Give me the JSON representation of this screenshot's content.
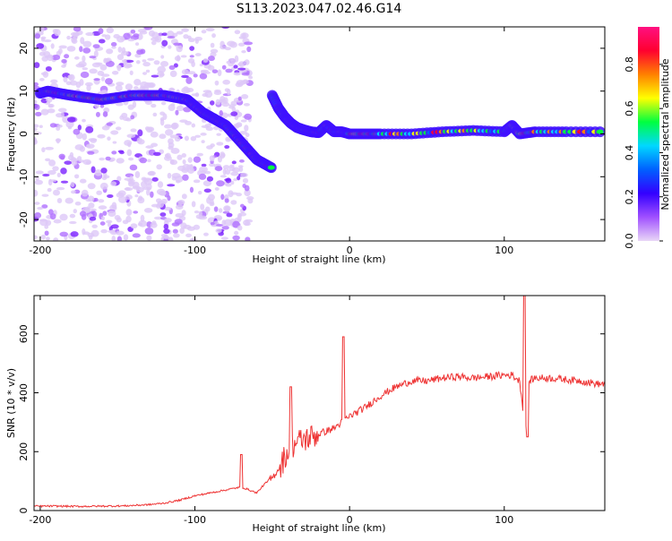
{
  "title": "S113.2023.047.02.46.G14",
  "colorbar": {
    "label": "Normalized spectral amplitude",
    "ticks": [
      {
        "value": 0.0,
        "label": "0.0"
      },
      {
        "value": 0.2,
        "label": "0.2"
      },
      {
        "value": 0.4,
        "label": "0.4"
      },
      {
        "value": 0.6,
        "label": "0.6"
      },
      {
        "value": 0.8,
        "label": "0.8"
      }
    ],
    "colors": [
      "#e9d6f7",
      "#a050ff",
      "#3300ff",
      "#0060ff",
      "#00d8ff",
      "#00ff40",
      "#ffff00",
      "#ff8000",
      "#ff0030",
      "#ff1080"
    ]
  },
  "chart_data": [
    {
      "type": "heatmap",
      "xlabel": "Height of straight line (km)",
      "ylabel": "Frequency (Hz)",
      "xlim": [
        -204,
        165
      ],
      "ylim": [
        -25,
        25
      ],
      "xticks": [
        {
          "value": -200,
          "label": "-200"
        },
        {
          "value": -100,
          "label": "-100"
        },
        {
          "value": 0,
          "label": "0"
        },
        {
          "value": 100,
          "label": "100"
        }
      ],
      "yticks": [
        {
          "value": -20,
          "label": "-20"
        },
        {
          "value": -10,
          "label": "-10"
        },
        {
          "value": 0,
          "label": "0"
        },
        {
          "value": 10,
          "label": "10"
        },
        {
          "value": 20,
          "label": "20"
        }
      ],
      "ridge": {
        "x": [
          -200,
          -195,
          -188,
          -180,
          -170,
          -160,
          -150,
          -140,
          -130,
          -120,
          -112,
          -105,
          -100,
          -95,
          -90,
          -85,
          -80,
          -75,
          -70,
          -65,
          -60,
          -55,
          -50
        ],
        "y": [
          9.5,
          10,
          9.5,
          9,
          8.5,
          8,
          8.5,
          9,
          9,
          9,
          8.5,
          8,
          6.5,
          5,
          4,
          3,
          2,
          0,
          -2,
          -4,
          -6,
          -7,
          -8
        ]
      },
      "ridge2": {
        "x": [
          -50,
          -46,
          -42,
          -38,
          -34,
          -30,
          -25,
          -20,
          -15,
          -10,
          -5,
          0,
          10,
          20,
          40,
          60,
          80,
          100,
          105,
          110,
          120,
          140,
          165
        ],
        "y": [
          9,
          6,
          4,
          2.5,
          1.5,
          1,
          0.5,
          0.3,
          2,
          0.5,
          0.5,
          0,
          0,
          0,
          0,
          0.5,
          0.8,
          0.5,
          2,
          0,
          0.5,
          0.5,
          0.5
        ]
      }
    },
    {
      "type": "line",
      "xlabel": "Height of straight line (km)",
      "ylabel": "SNR (10 * v/v)",
      "xlim": [
        -204,
        165
      ],
      "ylim": [
        0,
        730
      ],
      "xticks": [
        {
          "value": -200,
          "label": "-200"
        },
        {
          "value": -100,
          "label": "-100"
        },
        {
          "value": 0,
          "label": "0"
        },
        {
          "value": 100,
          "label": "100"
        }
      ],
      "yticks": [
        {
          "value": 0,
          "label": "0"
        },
        {
          "value": 200,
          "label": "200"
        },
        {
          "value": 400,
          "label": "400"
        },
        {
          "value": 600,
          "label": "600"
        }
      ],
      "color": "#ee3333",
      "series": [
        {
          "x": [
            -204,
            -190,
            -175,
            -160,
            -145,
            -130,
            -120,
            -110,
            -100,
            -90,
            -80,
            -70,
            -65,
            -60,
            -55,
            -50,
            -45,
            -40,
            -35,
            -30,
            -25,
            -20,
            -15,
            -10,
            -5,
            0,
            10,
            20,
            30,
            40,
            50,
            60,
            70,
            80,
            90,
            100,
            105,
            110,
            112,
            114,
            116,
            120,
            130,
            140,
            150,
            160,
            165
          ],
          "y": [
            15,
            15,
            14,
            15,
            16,
            20,
            25,
            35,
            50,
            60,
            70,
            80,
            70,
            60,
            90,
            110,
            150,
            200,
            230,
            240,
            250,
            260,
            270,
            280,
            300,
            320,
            350,
            390,
            420,
            440,
            440,
            450,
            455,
            450,
            455,
            460,
            460,
            440,
            350,
            300,
            440,
            450,
            450,
            445,
            440,
            430,
            430
          ]
        }
      ],
      "spikes": [
        {
          "x": -70,
          "y": 190
        },
        {
          "x": -38,
          "y": 420
        },
        {
          "x": -4,
          "y": 590
        },
        {
          "x": 113,
          "y": 730
        },
        {
          "x": 115,
          "y": 250
        }
      ]
    }
  ]
}
